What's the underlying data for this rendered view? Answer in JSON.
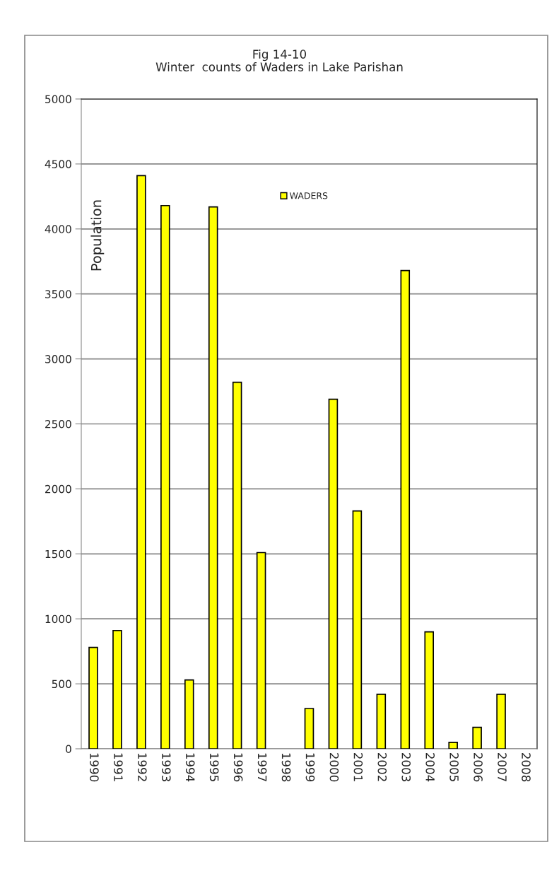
{
  "chart_data": {
    "type": "bar",
    "title": "Fig 14-10",
    "subtitle": "Winter  counts of Waders in Lake Parishan",
    "categories": [
      "1990",
      "1991",
      "1992",
      "1993",
      "1994",
      "1995",
      "1996",
      "1997",
      "1998",
      "1999",
      "2000",
      "2001",
      "2002",
      "2003",
      "2004",
      "2005",
      "2006",
      "2007",
      "2008"
    ],
    "series": [
      {
        "name": "WADERS",
        "color": "#ffff00",
        "values": [
          780,
          910,
          4410,
          4180,
          530,
          4170,
          2820,
          1510,
          null,
          310,
          2690,
          1830,
          420,
          3680,
          900,
          50,
          165,
          420,
          null
        ]
      }
    ],
    "ylabel": "Population",
    "ylim": [
      0,
      5000
    ],
    "yticks": [
      0,
      500,
      1000,
      1500,
      2000,
      2500,
      3000,
      3500,
      4000,
      4500,
      5000
    ],
    "grid": "y",
    "legend": "top"
  }
}
